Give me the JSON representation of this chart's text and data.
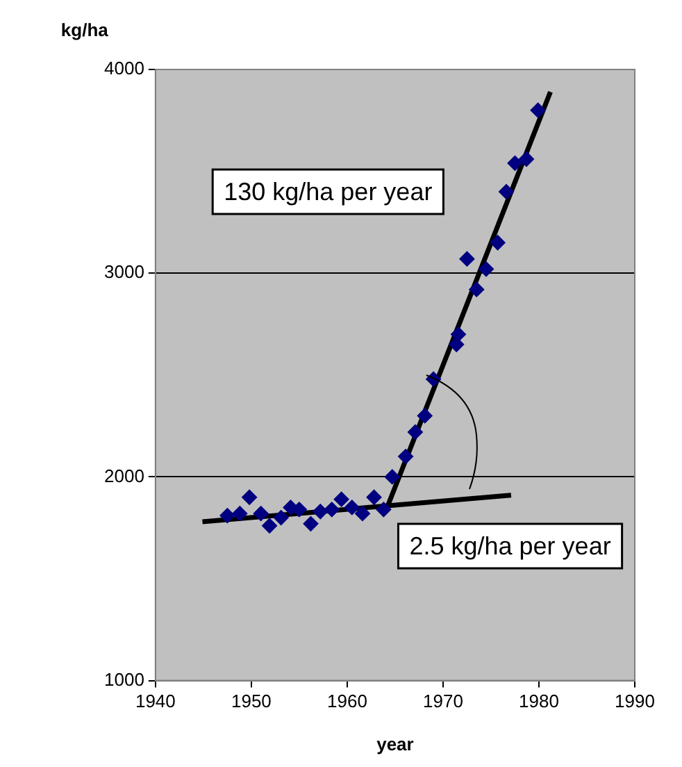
{
  "chart_data": {
    "type": "scatter",
    "xlabel": "year",
    "ylabel": "kg/ha",
    "xlim": [
      1940,
      1990
    ],
    "xticks": [
      1940,
      1950,
      1960,
      1970,
      1980,
      1990
    ],
    "ylim": [
      1000,
      4000
    ],
    "yticks": [
      1000,
      2000,
      3000,
      4000
    ],
    "grid": "y",
    "legend": false,
    "series": [
      {
        "color": "#000080",
        "marker": "diamond",
        "x": [
          1947.5,
          1948.8,
          1949.8,
          1951,
          1951.9,
          1953.1,
          1954.1,
          1955,
          1956.2,
          1957.2,
          1958.4,
          1959.4,
          1960.5,
          1961.6,
          1962.8,
          1963.8,
          1964.7,
          1966.1,
          1967.1,
          1968.1,
          1969,
          1971.4,
          1971.6,
          1972.5,
          1973.5,
          1974.5,
          1975.7,
          1976.6,
          1977.5,
          1978.7,
          1979.9
        ],
        "values": [
          1810,
          1820,
          1900,
          1820,
          1760,
          1800,
          1850,
          1840,
          1770,
          1830,
          1840,
          1890,
          1850,
          1820,
          1900,
          1840,
          2000,
          2100,
          2220,
          2300,
          2480,
          2650,
          2700,
          3070,
          2920,
          3020,
          3150,
          3400,
          3540,
          3560,
          3800
        ]
      },
      {
        "type": "line",
        "color": "#000000",
        "marker": "none",
        "x": [
          1944.9,
          1977.1
        ],
        "values": [
          1780,
          1910
        ]
      },
      {
        "type": "line",
        "color": "#000000",
        "marker": "none",
        "x": [
          1964,
          1981.2
        ],
        "values": [
          1830,
          3890
        ]
      }
    ],
    "annotations": [
      "130 kg/ha per year",
      "2.5 kg/ha per year"
    ]
  }
}
